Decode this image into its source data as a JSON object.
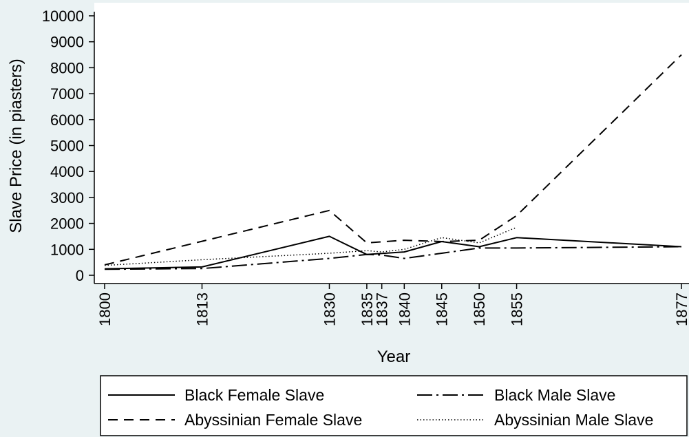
{
  "chart_data": {
    "type": "line",
    "title": "",
    "xlabel": "Year",
    "ylabel": "Slave Price (in piasters)",
    "xlim": [
      1800,
      1877
    ],
    "ylim": [
      0,
      10000
    ],
    "x_ticks": [
      1800,
      1813,
      1830,
      1835,
      1837,
      1840,
      1845,
      1850,
      1855,
      1877
    ],
    "y_ticks": [
      0,
      1000,
      2000,
      3000,
      4000,
      5000,
      6000,
      7000,
      8000,
      9000,
      10000
    ],
    "grid": false,
    "legend_position": "bottom",
    "series": [
      {
        "name": "Black Female Slave",
        "style": "solid",
        "x": [
          1800,
          1813,
          1830,
          1835,
          1840,
          1845,
          1850,
          1855,
          1877
        ],
        "y": [
          250,
          320,
          1500,
          800,
          900,
          1300,
          1100,
          1450,
          1100
        ]
      },
      {
        "name": "Black Male Slave",
        "style": "dash-dot",
        "x": [
          1800,
          1813,
          1830,
          1835,
          1837,
          1840,
          1845,
          1850,
          1855,
          1877
        ],
        "y": [
          230,
          260,
          650,
          800,
          780,
          650,
          850,
          1050,
          1050,
          1100
        ]
      },
      {
        "name": "Abyssinian Female Slave",
        "style": "dashed",
        "x": [
          1800,
          1830,
          1835,
          1840,
          1845,
          1850,
          1855,
          1877
        ],
        "y": [
          400,
          2500,
          1250,
          1350,
          1300,
          1350,
          2300,
          8500
        ]
      },
      {
        "name": "Abyssinian Male Slave",
        "style": "dotted",
        "x": [
          1800,
          1813,
          1830,
          1835,
          1837,
          1840,
          1845,
          1850,
          1855
        ],
        "y": [
          380,
          600,
          850,
          950,
          900,
          1000,
          1450,
          1250,
          1850
        ]
      }
    ]
  },
  "colors": {
    "background": "#eaf2f3",
    "plot_area": "#ffffff",
    "line": "#000000"
  }
}
